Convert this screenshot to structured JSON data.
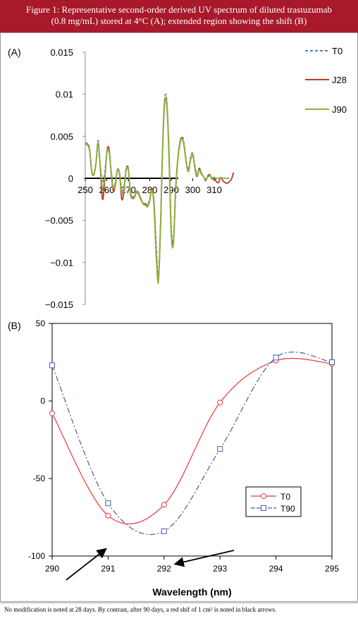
{
  "header": {
    "line1": "Figure 1: Representative second-order derived UV spectrum of diluted trastuzumab",
    "line2": "(0.8 mg/mL) stored at 4°C (A); extended region showing the shift (B)"
  },
  "footer": {
    "note": "No modification is noted at 28 days. By contrast, after 90 days, a red shif of 1 cm² is noted in black arrows."
  },
  "colors": {
    "header_bg": "#a8192a",
    "T0_A": "#4a7ebb",
    "J28": "#c0392b",
    "J90": "#8db33a",
    "T0_B": "#e8383d",
    "T90": "#4a5ba6"
  },
  "chart_data": [
    {
      "panel_label": "(A)",
      "type": "line",
      "xlim": [
        250,
        319
      ],
      "ylim": [
        -0.015,
        0.015
      ],
      "xticks": [
        250,
        260,
        270,
        280,
        290,
        300,
        310
      ],
      "yticks": [
        "0.015",
        "0.01",
        "0.005",
        "0",
        "-0.005",
        "-0.01",
        "-0.015"
      ],
      "xlabel": "",
      "ylabel": "",
      "legend_position": "right",
      "series": [
        {
          "name": "T0",
          "color": "#4a7ebb",
          "dash": "4,3",
          "x": [
            250,
            251,
            252,
            253,
            254,
            255,
            256,
            257,
            258,
            259,
            260,
            261,
            262,
            263,
            264,
            265,
            266,
            267,
            268,
            269,
            270,
            271,
            272,
            273,
            274,
            275,
            276,
            277,
            278,
            279,
            280,
            281,
            282,
            283,
            284,
            285,
            286,
            287,
            288,
            289,
            290,
            291,
            292,
            293,
            294,
            295,
            296,
            297,
            298,
            299,
            300,
            301,
            302,
            303,
            304,
            305,
            306,
            307,
            308,
            309,
            310,
            311,
            312,
            313,
            314,
            315,
            316,
            317
          ],
          "y": [
            0.004,
            0.0042,
            0.0035,
            0.001,
            0.0005,
            0.002,
            0.0045,
            0.0015,
            -0.0005,
            0.0005,
            0.003,
            0.0032,
            0.001,
            -0.001,
            -0.0005,
            0.001,
            0.0005,
            -0.0015,
            -0.001,
            0.001,
            0.001,
            -0.0015,
            -0.0022,
            -0.002,
            -0.0015,
            -0.0018,
            -0.0025,
            -0.003,
            -0.003,
            -0.0032,
            -0.0025,
            -0.0015,
            -0.003,
            -0.008,
            -0.012,
            -0.006,
            0.004,
            0.0095,
            0.009,
            0.003,
            -0.006,
            -0.0075,
            -0.002,
            0.002,
            0.004,
            0.005,
            0.004,
            0.002,
            0.001,
            0.0025,
            0.003,
            0.0015,
            0.0005,
            0.001,
            0.0005,
            0.0002,
            -0.0001,
            0.0001,
            0.0003,
            0.0001,
            0.0001,
            0.0,
            0.0,
            0.0,
            0.0,
            0.0,
            0.0,
            0.0
          ]
        },
        {
          "name": "J28",
          "color": "#c0392b",
          "dash": "",
          "x": [
            250,
            251,
            252,
            253,
            254,
            255,
            256,
            257,
            258,
            259,
            260,
            261,
            262,
            263,
            264,
            265,
            266,
            267,
            268,
            269,
            270,
            271,
            272,
            273,
            274,
            275,
            276,
            277,
            278,
            279,
            280,
            281,
            282,
            283,
            284,
            285,
            286,
            287,
            288,
            289,
            290,
            291,
            292,
            293,
            294,
            295,
            296,
            297,
            298,
            299,
            300,
            301,
            302,
            303,
            304,
            305,
            306,
            307,
            308,
            309,
            310,
            311,
            312,
            313,
            314,
            315,
            316,
            317,
            318,
            319
          ],
          "y": [
            0.0042,
            0.004,
            0.0033,
            0.0008,
            0.0004,
            0.0018,
            0.0042,
            0.0012,
            -0.0025,
            -0.0005,
            0.003,
            0.0036,
            0.0008,
            -0.0015,
            -0.0008,
            0.001,
            0.0004,
            -0.0025,
            -0.0015,
            0.001,
            0.0012,
            -0.0018,
            -0.0024,
            -0.0022,
            -0.0016,
            -0.002,
            -0.0026,
            -0.003,
            -0.0031,
            -0.0033,
            -0.0026,
            -0.0012,
            -0.0032,
            -0.0088,
            -0.0122,
            -0.0055,
            0.0038,
            0.0092,
            0.0085,
            0.0025,
            -0.0065,
            -0.0075,
            -0.0015,
            0.0022,
            0.0042,
            0.0048,
            0.0038,
            0.0018,
            0.0008,
            0.0022,
            0.0028,
            0.0012,
            0.0002,
            0.0012,
            0.0006,
            0.0002,
            -0.0003,
            0.0003,
            0.0004,
            -0.0001,
            0.0001,
            -0.0004,
            -0.0005,
            0.0001,
            -0.0003,
            -0.0005,
            -0.0006,
            -0.0004,
            -0.0001,
            0.0007
          ]
        },
        {
          "name": "J90",
          "color": "#8db33a",
          "dash": "",
          "x": [
            250,
            251,
            252,
            253,
            254,
            255,
            256,
            257,
            258,
            259,
            260,
            261,
            262,
            263,
            264,
            265,
            266,
            267,
            268,
            269,
            270,
            271,
            272,
            273,
            274,
            275,
            276,
            277,
            278,
            279,
            280,
            281,
            282,
            283,
            284,
            285,
            286,
            287,
            288,
            289,
            290,
            291,
            292,
            293,
            294,
            295,
            296,
            297,
            298,
            299,
            300,
            301,
            302,
            303,
            304,
            305,
            306,
            307,
            308,
            309,
            310,
            311,
            312,
            313,
            314,
            315,
            316,
            317
          ],
          "y": [
            0.0041,
            0.0041,
            0.0034,
            0.0009,
            0.0004,
            0.0019,
            0.0043,
            0.0013,
            -0.0012,
            0.0,
            0.0029,
            0.0033,
            0.0009,
            -0.0012,
            -0.0006,
            0.0011,
            0.0005,
            -0.0018,
            -0.0012,
            0.0009,
            0.0011,
            -0.0016,
            -0.0023,
            -0.0021,
            -0.0015,
            -0.0019,
            -0.0025,
            -0.0031,
            -0.0032,
            -0.0034,
            -0.0027,
            -0.0014,
            -0.0035,
            -0.0092,
            -0.0124,
            -0.0058,
            0.0036,
            0.009,
            0.0088,
            0.002,
            -0.0068,
            -0.0078,
            -0.0018,
            0.002,
            0.004,
            0.0047,
            0.0038,
            0.0018,
            0.0008,
            0.0023,
            0.0029,
            0.0013,
            0.0003,
            0.001,
            0.0005,
            0.0002,
            -0.0002,
            0.0002,
            0.0003,
            0.0,
            0.0001,
            0.0,
            0.0,
            0.0,
            0.0,
            0.0,
            0.0,
            0.0
          ]
        }
      ]
    },
    {
      "panel_label": "(B)",
      "type": "line",
      "xlim": [
        290,
        295
      ],
      "ylim": [
        -100,
        50
      ],
      "xticks": [
        290,
        291,
        292,
        293,
        294,
        295
      ],
      "yticks": [
        50,
        0,
        -50,
        -100
      ],
      "xlabel": "Wavelength (nm)",
      "ylabel": "",
      "legend_position": "right",
      "series": [
        {
          "name": "T0",
          "color": "#e8383d",
          "marker": "circle",
          "x": [
            290,
            291,
            292,
            293,
            294,
            295
          ],
          "y": [
            -8,
            -74,
            -67,
            -1,
            26,
            24
          ]
        },
        {
          "name": "T90",
          "color": "#4a5ba6",
          "marker": "square",
          "x": [
            290,
            291,
            292,
            293,
            294,
            295
          ],
          "y": [
            23,
            -66,
            -84,
            -31,
            28,
            25
          ]
        }
      ]
    }
  ]
}
